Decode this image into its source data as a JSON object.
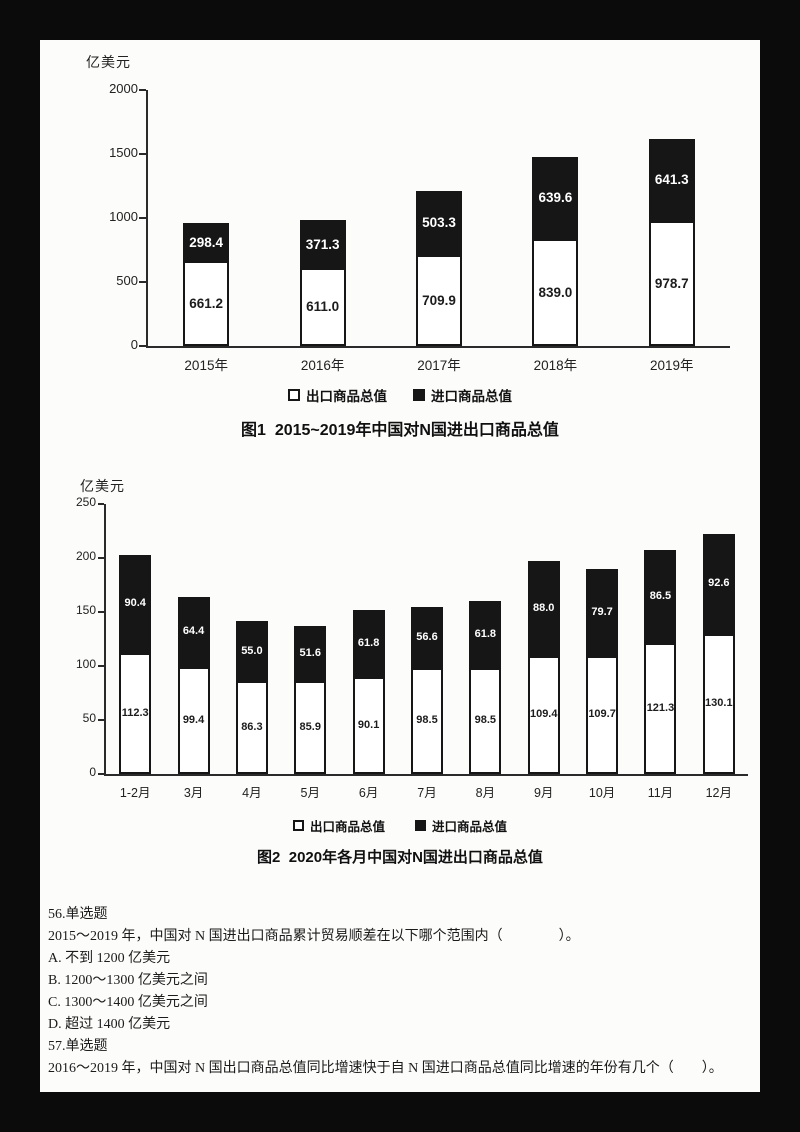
{
  "page": {
    "frame_color": "#0b0b0b",
    "paper_color": "#fcfcfa"
  },
  "chart_data": [
    {
      "type": "bar",
      "stacked": true,
      "title": "图1  2015~2019年中国对N国进出口商品总值",
      "ylabel": "亿美元",
      "xlabel": "",
      "ymax": 2000,
      "yticks": [
        0,
        500,
        1000,
        1500,
        2000
      ],
      "grid": false,
      "legend_position": "bottom",
      "categories": [
        "2015年",
        "2016年",
        "2017年",
        "2018年",
        "2019年"
      ],
      "series": [
        {
          "name": "出口商品总值",
          "color": "#ffffff",
          "values": [
            661.2,
            611.0,
            709.9,
            839.0,
            978.7
          ]
        },
        {
          "name": "进口商品总值",
          "color": "#161616",
          "values": [
            298.4,
            371.3,
            503.3,
            639.6,
            641.3
          ]
        }
      ]
    },
    {
      "type": "bar",
      "stacked": true,
      "title": "图2  2020年各月中国对N国进出口商品总值",
      "ylabel": "亿美元",
      "xlabel": "",
      "ymax": 250,
      "yticks": [
        0,
        50,
        100,
        150,
        200,
        250
      ],
      "grid": false,
      "legend_position": "bottom",
      "categories": [
        "1-2月",
        "3月",
        "4月",
        "5月",
        "6月",
        "7月",
        "8月",
        "9月",
        "10月",
        "11月",
        "12月"
      ],
      "series": [
        {
          "name": "出口商品总值",
          "color": "#ffffff",
          "values": [
            112.3,
            99.4,
            86.3,
            85.9,
            90.1,
            98.5,
            98.5,
            109.4,
            109.7,
            121.3,
            130.1
          ]
        },
        {
          "name": "进口商品总值",
          "color": "#161616",
          "values": [
            90.4,
            64.4,
            55.0,
            51.6,
            61.8,
            56.6,
            61.8,
            88.0,
            79.7,
            86.5,
            92.6
          ]
        }
      ]
    }
  ],
  "questions": {
    "lines": [
      "56.单选题",
      "2015～2019 年，中国对 N 国进出口商品累计贸易顺差在以下哪个范围内（　　　　）。",
      "A. 不到 1200 亿美元",
      "B. 1200～1300 亿美元之间",
      "C. 1300～1400 亿美元之间",
      "D. 超过 1400 亿美元",
      "57.单选题",
      "2016～2019 年，中国对 N 国出口商品总值同比增速快于自 N 国进口商品总值同比增速的年份有几个（　　）。"
    ]
  }
}
